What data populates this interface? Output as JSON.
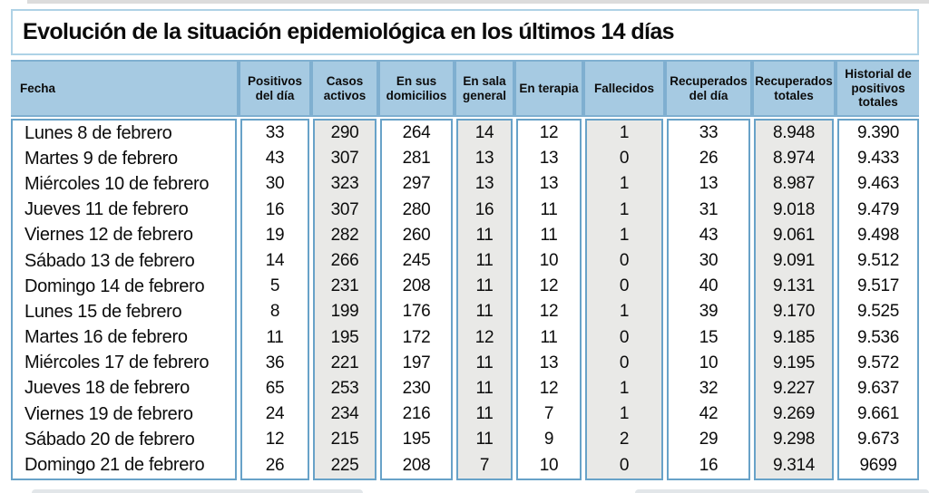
{
  "page": {
    "title": "Evolución de la situación epidemiológica en los últimos 14 días"
  },
  "colors": {
    "header_cell_blue": "#a6cae2",
    "header_band_blue": "#7fafd0",
    "column_border_blue": "#68a2c8",
    "shaded_column_gray": "#e9e9e7",
    "title_border_blue": "#aed2e6"
  },
  "table": {
    "columns": [
      {
        "label": "Fecha",
        "shaded": false
      },
      {
        "label": "Positivos del día",
        "shaded": false
      },
      {
        "label": "Casos activos",
        "shaded": true
      },
      {
        "label": "En sus domicilios",
        "shaded": false
      },
      {
        "label": "En sala general",
        "shaded": true
      },
      {
        "label": "En terapia",
        "shaded": false
      },
      {
        "label": "Fallecidos",
        "shaded": true
      },
      {
        "label": "Recuperados del día",
        "shaded": false
      },
      {
        "label": "Recuperados totales",
        "shaded": true
      },
      {
        "label": "Historial de positivos totales",
        "shaded": false
      }
    ],
    "rows": [
      {
        "cells": [
          "Lunes 8 de febrero",
          "33",
          "290",
          "264",
          "14",
          "12",
          "1",
          "33",
          "8.948",
          "9.390"
        ]
      },
      {
        "cells": [
          "Martes 9 de febrero",
          "43",
          "307",
          "281",
          "13",
          "13",
          "0",
          "26",
          "8.974",
          "9.433"
        ]
      },
      {
        "cells": [
          "Miércoles 10 de febrero",
          "30",
          "323",
          "297",
          "13",
          "13",
          "1",
          "13",
          "8.987",
          "9.463"
        ]
      },
      {
        "cells": [
          "Jueves 11 de febrero",
          "16",
          "307",
          "280",
          "16",
          "11",
          "1",
          "31",
          "9.018",
          "9.479"
        ]
      },
      {
        "cells": [
          "Viernes 12 de febrero",
          "19",
          "282",
          "260",
          "11",
          "11",
          "1",
          "43",
          "9.061",
          "9.498"
        ]
      },
      {
        "cells": [
          "Sábado 13 de febrero",
          "14",
          "266",
          "245",
          "11",
          "10",
          "0",
          "30",
          "9.091",
          "9.512"
        ]
      },
      {
        "cells": [
          "Domingo 14 de febrero",
          "5",
          "231",
          "208",
          "11",
          "12",
          "0",
          "40",
          "9.131",
          "9.517"
        ]
      },
      {
        "cells": [
          "Lunes 15 de febrero",
          "8",
          "199",
          "176",
          "11",
          "12",
          "1",
          "39",
          "9.170",
          "9.525"
        ]
      },
      {
        "cells": [
          "Martes 16 de febrero",
          "11",
          "195",
          "172",
          "12",
          "11",
          "0",
          "15",
          "9.185",
          "9.536"
        ]
      },
      {
        "cells": [
          "Miércoles 17 de febrero",
          "36",
          "221",
          "197",
          "11",
          "13",
          "0",
          "10",
          "9.195",
          "9.572"
        ]
      },
      {
        "cells": [
          "Jueves 18 de febrero",
          "65",
          "253",
          "230",
          "11",
          "12",
          "1",
          "32",
          "9.227",
          "9.637"
        ]
      },
      {
        "cells": [
          "Viernes 19 de febrero",
          "24",
          "234",
          "216",
          "11",
          "7",
          "1",
          "42",
          "9.269",
          "9.661"
        ]
      },
      {
        "cells": [
          "Sábado 20 de febrero",
          "12",
          "215",
          "195",
          "11",
          "9",
          "2",
          "29",
          "9.298",
          "9.673"
        ]
      },
      {
        "cells": [
          "Domingo 21 de febrero",
          "26",
          "225",
          "208",
          "7",
          "10",
          "0",
          "16",
          "9.314",
          "9699"
        ]
      }
    ]
  }
}
